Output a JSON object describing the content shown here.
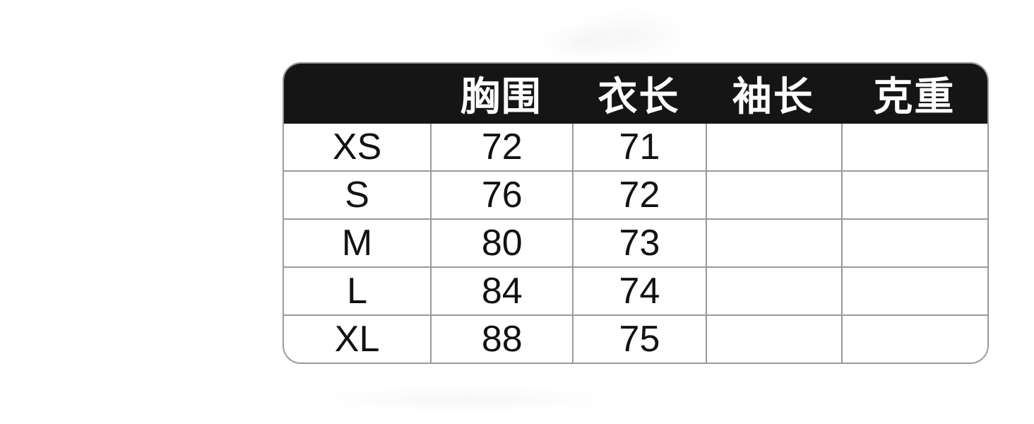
{
  "style": {
    "header_background": "#151515",
    "header_text_color": "#ffffff",
    "grid_line_color": "#9a9a9a",
    "body_text_color": "#121212",
    "page_background": "#ffffff"
  },
  "chart_data": {
    "type": "table",
    "title": "",
    "columns": [
      "",
      "胸围",
      "衣长",
      "袖长",
      "克重"
    ],
    "rows": [
      {
        "size": "XS",
        "chest": "72",
        "length": "71",
        "sleeve": "",
        "weight": ""
      },
      {
        "size": "S",
        "chest": "76",
        "length": "72",
        "sleeve": "",
        "weight": ""
      },
      {
        "size": "M",
        "chest": "80",
        "length": "73",
        "sleeve": "",
        "weight": ""
      },
      {
        "size": "L",
        "chest": "84",
        "length": "74",
        "sleeve": "",
        "weight": ""
      },
      {
        "size": "XL",
        "chest": "88",
        "length": "75",
        "sleeve": "",
        "weight": ""
      }
    ]
  }
}
